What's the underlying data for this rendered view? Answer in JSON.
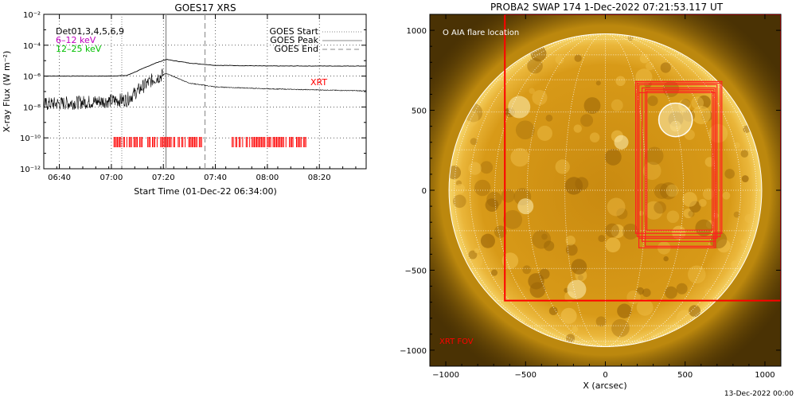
{
  "left_panel": {
    "title": "GOES17 XRS",
    "ylabel": "X-ray Flux (W m⁻²)",
    "xlabel": "Start Time (01-Dec-22 06:34:00)",
    "legend_series": [
      {
        "label": "Det01,3,4,5,6,9",
        "color": "#000000"
      },
      {
        "label": "6–12 keV",
        "color": "#c000c0"
      },
      {
        "label": "12–25 keV",
        "color": "#00c000"
      }
    ],
    "legend_lines": [
      {
        "label": "GOES Start",
        "style": "dotted"
      },
      {
        "label": "GOES Peak",
        "style": "solid"
      },
      {
        "label": "GOES End",
        "style": "dashed"
      }
    ],
    "xrt_label": "XRT"
  },
  "right_panel": {
    "title": "PROBA2 SWAP 174   1-Dec-2022 07:21:53.117 UT",
    "xlabel": "X (arcsec)",
    "aia_label": "O AIA flare location",
    "xrt_fov_label": "XRT FOV",
    "footer": "13-Dec-2022 00:00"
  },
  "chart_data": [
    {
      "type": "line",
      "title": "GOES17 XRS",
      "xlabel": "Start Time (01-Dec-22 06:34:00)",
      "ylabel": "X-ray Flux (W m⁻²)",
      "y_scale": "log",
      "ylim": [
        1e-12,
        0.01
      ],
      "xlim_minutes_of_day": [
        394,
        518
      ],
      "x_ticks": [
        "06:40",
        "07:00",
        "07:20",
        "07:40",
        "08:00",
        "08:20"
      ],
      "y_ticks": [
        "10⁻¹²",
        "10⁻¹⁰",
        "10⁻⁸",
        "10⁻⁶",
        "10⁻⁴",
        "10⁻²"
      ],
      "goes_start": "07:04",
      "goes_peak": "07:21",
      "goes_end": "07:36",
      "series": [
        {
          "name": "",
          "x": [
            "06:34",
            "07:00",
            "07:06",
            "07:12",
            "07:16",
            "07:21",
            "07:30",
            "07:40",
            "08:00",
            "08:38"
          ],
          "values": [
            1e-06,
            1e-06,
            1.1e-06,
            3e-06,
            6e-06,
            1.2e-05,
            7e-06,
            5e-06,
            4.5e-06,
            4.5e-06
          ]
        },
        {
          "name": "",
          "x": [
            "06:34",
            "07:00",
            "07:06",
            "07:12",
            "07:16",
            "07:21",
            "07:30",
            "07:40",
            "08:00",
            "08:38"
          ],
          "values": [
            1.5e-08,
            2.5e-08,
            3e-08,
            2e-07,
            6e-07,
            1.5e-06,
            3.5e-07,
            2e-07,
            1.5e-07,
            1.1e-07
          ]
        }
      ],
      "xrt_intervals": [
        [
          "07:01",
          "07:12"
        ],
        [
          "07:14",
          "07:35"
        ],
        [
          "07:46",
          "08:15"
        ]
      ]
    },
    {
      "type": "scatter",
      "title": "PROBA2 SWAP 174   1-Dec-2022 07:21:53.117 UT",
      "xlabel": "X (arcsec)",
      "xlim": [
        -1100,
        1100
      ],
      "ylim": [
        -1100,
        1100
      ],
      "x_ticks": [
        -1000,
        -500,
        0,
        500,
        1000
      ],
      "y_ticks": [
        -1000,
        -500,
        0,
        500,
        1000
      ],
      "solar_radius_arcsec": 980,
      "aia_flare_location": [
        440,
        440
      ],
      "xrt_fov_box": {
        "x": [
          -630,
          1100
        ],
        "y": [
          -690,
          1100
        ]
      }
    }
  ]
}
